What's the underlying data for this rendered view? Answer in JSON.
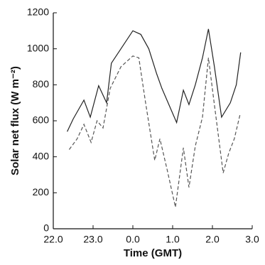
{
  "chart_data": {
    "type": "line",
    "xlabel": "Time (GMT)",
    "ylabel": "Solar net flux (W m⁻²)",
    "xlim": [
      22,
      27
    ],
    "xticks": [
      {
        "value": 22,
        "label": "22.0"
      },
      {
        "value": 23,
        "label": "23.0"
      },
      {
        "value": 24,
        "label": "0.0"
      },
      {
        "value": 25,
        "label": "1.0"
      },
      {
        "value": 26,
        "label": "2.0"
      },
      {
        "value": 27,
        "label": "3.0"
      }
    ],
    "ylim": [
      0,
      1200
    ],
    "yticks": [
      0,
      200,
      400,
      600,
      800,
      1000,
      1200
    ],
    "series": [
      {
        "color": "#222222",
        "dash": false,
        "x": [
          22.35,
          22.5,
          22.77,
          22.93,
          23.14,
          23.34,
          23.46,
          23.7,
          24.0,
          24.2,
          24.4,
          24.6,
          24.73,
          25.1,
          25.27,
          25.41,
          25.57,
          25.75,
          25.9,
          26.05,
          26.23,
          26.45,
          26.6,
          26.71
        ],
        "values": [
          540,
          610,
          715,
          620,
          795,
          700,
          920,
          1000,
          1100,
          1080,
          1000,
          860,
          780,
          590,
          770,
          690,
          800,
          950,
          1110,
          900,
          620,
          700,
          800,
          980
        ]
      },
      {
        "color": "#555555",
        "dash": true,
        "x": [
          22.4,
          22.6,
          22.77,
          22.95,
          23.1,
          23.25,
          23.43,
          23.7,
          24.0,
          24.15,
          24.32,
          24.55,
          24.68,
          24.86,
          25.07,
          25.27,
          25.41,
          25.57,
          25.75,
          25.9,
          26.02,
          26.27,
          26.41,
          26.55,
          26.7
        ],
        "values": [
          440,
          500,
          580,
          480,
          600,
          560,
          780,
          900,
          960,
          950,
          700,
          380,
          500,
          330,
          120,
          450,
          230,
          460,
          620,
          950,
          740,
          310,
          420,
          500,
          640
        ]
      }
    ]
  }
}
